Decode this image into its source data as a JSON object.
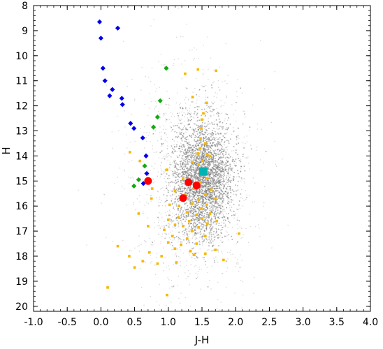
{
  "chart_data": {
    "type": "scatter",
    "title": "",
    "xlabel": "J-H",
    "ylabel": "H",
    "xlim": [
      -1.0,
      4.0
    ],
    "ylim": [
      8,
      20.2
    ],
    "y_inverted": true,
    "grid": false,
    "legend": "none",
    "x_ticks": [
      "-1.0",
      "-0.5",
      "0.0",
      "0.5",
      "1.0",
      "1.5",
      "2.0",
      "2.5",
      "3.0",
      "3.5",
      "4.0"
    ],
    "x_tick_values": [
      -1.0,
      -0.5,
      0.0,
      0.5,
      1.0,
      1.5,
      2.0,
      2.5,
      3.0,
      3.5,
      4.0
    ],
    "y_ticks": [
      "8",
      "9",
      "10",
      "11",
      "12",
      "13",
      "14",
      "15",
      "16",
      "17",
      "18",
      "19",
      "20"
    ],
    "y_tick_values": [
      8,
      9,
      10,
      11,
      12,
      13,
      14,
      15,
      16,
      17,
      18,
      19,
      20
    ],
    "background_field": {
      "description_color": "#8c8c8c",
      "dense_core": {
        "x_center": 1.5,
        "x_sigma": 0.22,
        "y_center": 14.9,
        "y_sigma": 1.2,
        "count": 2600
      },
      "outer_cloud": {
        "x_center": 1.35,
        "x_sigma": 0.45,
        "y_center": 15.0,
        "y_sigma": 2.2,
        "count": 1400
      }
    },
    "series": [
      {
        "marker": "diamond",
        "color": "#0000ee",
        "points": [
          [
            -0.02,
            8.65
          ],
          [
            0.25,
            8.9
          ],
          [
            0.0,
            9.3
          ],
          [
            0.03,
            10.5
          ],
          [
            0.06,
            11.0
          ],
          [
            0.17,
            11.35
          ],
          [
            0.13,
            11.6
          ],
          [
            0.31,
            11.7
          ],
          [
            0.32,
            11.95
          ],
          [
            0.44,
            12.7
          ],
          [
            0.49,
            12.9
          ],
          [
            0.62,
            13.28
          ],
          [
            0.67,
            14.0
          ],
          [
            0.68,
            14.7
          ],
          [
            0.63,
            15.1
          ]
        ]
      },
      {
        "marker": "diamond",
        "color": "#11aa11",
        "points": [
          [
            0.97,
            10.5
          ],
          [
            0.88,
            11.8
          ],
          [
            0.84,
            12.45
          ],
          [
            0.78,
            12.85
          ],
          [
            0.65,
            14.4
          ],
          [
            0.56,
            14.95
          ],
          [
            0.49,
            15.2
          ]
        ]
      },
      {
        "marker": "square-small",
        "color": "#f5b800",
        "points": [
          [
            1.44,
            10.55
          ],
          [
            1.71,
            10.6
          ],
          [
            1.25,
            10.72
          ],
          [
            1.36,
            11.65
          ],
          [
            1.57,
            11.88
          ],
          [
            1.52,
            12.3
          ],
          [
            1.5,
            12.55
          ],
          [
            1.49,
            12.9
          ],
          [
            1.48,
            13.3
          ],
          [
            1.55,
            13.5
          ],
          [
            1.47,
            13.7
          ],
          [
            1.44,
            13.9
          ],
          [
            1.58,
            13.95
          ],
          [
            1.36,
            14.25
          ],
          [
            1.62,
            14.0
          ],
          [
            1.45,
            14.35
          ],
          [
            1.51,
            14.2
          ],
          [
            1.54,
            14.55
          ],
          [
            0.43,
            13.85
          ],
          [
            0.58,
            14.2
          ],
          [
            0.98,
            14.55
          ],
          [
            1.22,
            14.9
          ],
          [
            1.58,
            14.9
          ],
          [
            1.64,
            15.35
          ],
          [
            1.48,
            15.05
          ],
          [
            1.38,
            15.3
          ],
          [
            1.1,
            15.4
          ],
          [
            1.25,
            15.55
          ],
          [
            1.55,
            15.55
          ],
          [
            1.7,
            15.7
          ],
          [
            1.45,
            15.75
          ],
          [
            1.35,
            15.9
          ],
          [
            1.57,
            15.95
          ],
          [
            1.16,
            16.0
          ],
          [
            1.49,
            16.1
          ],
          [
            1.28,
            16.25
          ],
          [
            1.62,
            16.3
          ],
          [
            1.42,
            16.35
          ],
          [
            1.15,
            16.45
          ],
          [
            1.5,
            16.5
          ],
          [
            1.0,
            16.55
          ],
          [
            1.31,
            16.6
          ],
          [
            1.72,
            16.6
          ],
          [
            1.58,
            16.7
          ],
          [
            1.1,
            16.75
          ],
          [
            1.22,
            16.8
          ],
          [
            1.45,
            16.85
          ],
          [
            0.94,
            16.95
          ],
          [
            1.35,
            17.0
          ],
          [
            1.06,
            17.2
          ],
          [
            1.55,
            17.2
          ],
          [
            2.05,
            17.1
          ],
          [
            1.28,
            17.3
          ],
          [
            1.0,
            17.45
          ],
          [
            1.19,
            17.55
          ],
          [
            1.42,
            17.5
          ],
          [
            1.1,
            17.7
          ],
          [
            1.33,
            17.8
          ],
          [
            1.7,
            17.75
          ],
          [
            0.72,
            17.85
          ],
          [
            1.55,
            17.9
          ],
          [
            1.38,
            17.95
          ],
          [
            0.9,
            18.0
          ],
          [
            1.82,
            18.15
          ],
          [
            0.62,
            18.2
          ],
          [
            1.12,
            18.25
          ],
          [
            0.84,
            18.3
          ],
          [
            0.5,
            18.45
          ],
          [
            0.75,
            15.7
          ],
          [
            0.56,
            16.3
          ],
          [
            0.7,
            16.8
          ],
          [
            0.25,
            17.6
          ],
          [
            0.42,
            18.0
          ],
          [
            1.02,
            15.95
          ],
          [
            0.98,
            19.55
          ],
          [
            0.1,
            19.25
          ],
          [
            0.76,
            15.3
          ],
          [
            1.32,
            15.1
          ]
        ]
      },
      {
        "marker": "circle-large",
        "color": "#ff0000",
        "points": [
          [
            0.7,
            15.0
          ],
          [
            1.3,
            15.05
          ],
          [
            1.42,
            15.18
          ],
          [
            1.22,
            15.68
          ]
        ]
      },
      {
        "marker": "square-large",
        "color": "#00b3b3",
        "points": [
          [
            1.52,
            14.62
          ]
        ]
      }
    ]
  }
}
